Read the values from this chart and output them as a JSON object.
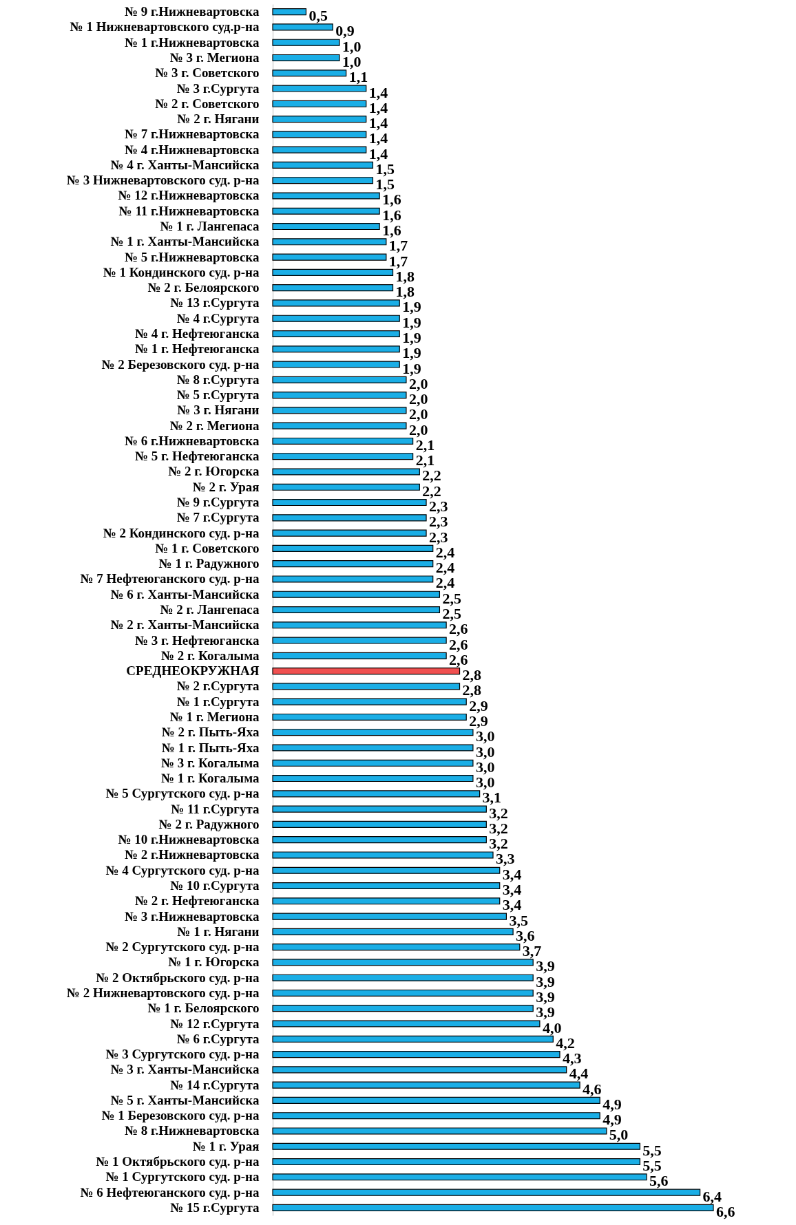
{
  "chart_data": {
    "type": "bar",
    "orientation": "horizontal",
    "categories": [
      "№ 9 г.Нижневартовска",
      "№ 1 Нижневартовского суд.р-на",
      "№ 1 г.Нижневартовска",
      "№ 3 г. Мегиона",
      "№ 3 г. Советского",
      "№ 3 г.Сургута",
      "№ 2 г. Советского",
      "№ 2 г. Нягани",
      "№ 7 г.Нижневартовска",
      "№ 4 г.Нижневартовска",
      "№ 4  г. Ханты-Мансийска",
      "№ 3 Нижневартовского суд. р-на",
      "№ 12 г.Нижневартовска",
      "№ 11 г.Нижневартовска",
      "№ 1 г. Лангепаса",
      "№ 1 г. Ханты-Мансийска",
      "№ 5 г.Нижневартовска",
      "№ 1 Кондинского суд. р-на",
      "№ 2 г. Белоярского",
      "№ 13 г.Сургута",
      "№ 4 г.Сургута",
      "№ 4 г. Нефтеюганска",
      "№ 1 г. Нефтеюганска",
      "№ 2 Березовского суд. р-на",
      "№ 8 г.Сургута",
      "№ 5 г.Сургута",
      "№ 3 г. Нягани",
      "№ 2 г. Мегиона",
      "№ 6 г.Нижневартовска",
      "№ 5 г. Нефтеюганска",
      "№ 2 г. Югорска",
      "№ 2 г. Урая",
      "№ 9 г.Сургута",
      "№ 7 г.Сургута",
      "№ 2 Кондинского суд. р-на",
      "№ 1 г. Советского",
      "№ 1 г. Радужного",
      "№ 7 Нефтеюганского суд. р-на",
      "№ 6  г. Ханты-Мансийска",
      "№ 2 г. Лангепаса",
      "№ 2  г. Ханты-Мансийска",
      "№ 3 г. Нефтеюганска",
      "№ 2 г. Когалыма",
      "СРЕДНЕОКРУЖНАЯ",
      "№ 2 г.Сургута",
      "№ 1 г.Сургута",
      "№ 1 г. Мегиона",
      "№ 2 г. Пыть-Яха",
      "№ 1 г. Пыть-Яха",
      "№ 3 г. Когалыма",
      "№ 1 г. Когалыма",
      "№ 5 Сургутского суд. р-на",
      "№ 11 г.Сургута",
      "№ 2 г. Радужного",
      "№ 10 г.Нижневартовска",
      "№ 2 г.Нижневартовска",
      "№ 4 Сургутского суд. р-на",
      "№ 10 г.Сургута",
      "№ 2 г. Нефтеюганска",
      "№ 3 г.Нижневартовска",
      "№ 1 г. Нягани",
      "№ 2 Сургутского суд. р-на",
      "№ 1 г. Югорска",
      "№ 2 Октябрьского суд. р-на",
      "№ 2 Нижневартовского суд. р-на",
      "№ 1 г. Белоярского",
      "№ 12 г.Сургута",
      "№ 6 г.Сургута",
      "№ 3 Сургутского суд. р-на",
      "№ 3  г. Ханты-Мансийска",
      "№ 14 г.Сургута",
      "№ 5  г. Ханты-Мансийска",
      "№ 1 Березовского суд. р-на",
      "№ 8 г.Нижневартовска",
      "№ 1 г. Урая",
      "№ 1 Октябрьского суд. р-на",
      "№ 1 Сургутского суд. р-на",
      "№ 6 Нефтеюганского суд. р-на",
      "№ 15 г.Сургута"
    ],
    "values": [
      0.5,
      0.9,
      1.0,
      1.0,
      1.1,
      1.4,
      1.4,
      1.4,
      1.4,
      1.4,
      1.5,
      1.5,
      1.6,
      1.6,
      1.6,
      1.7,
      1.7,
      1.8,
      1.8,
      1.9,
      1.9,
      1.9,
      1.9,
      1.9,
      2.0,
      2.0,
      2.0,
      2.0,
      2.1,
      2.1,
      2.2,
      2.2,
      2.3,
      2.3,
      2.3,
      2.4,
      2.4,
      2.4,
      2.5,
      2.5,
      2.6,
      2.6,
      2.6,
      2.8,
      2.8,
      2.9,
      2.9,
      3.0,
      3.0,
      3.0,
      3.0,
      3.1,
      3.2,
      3.2,
      3.2,
      3.3,
      3.4,
      3.4,
      3.4,
      3.5,
      3.6,
      3.7,
      3.9,
      3.9,
      3.9,
      3.9,
      4.0,
      4.2,
      4.3,
      4.4,
      4.6,
      4.9,
      4.9,
      5.0,
      5.5,
      5.5,
      5.6,
      6.4,
      6.6
    ],
    "value_labels": [
      "0,5",
      "0,9",
      "1,0",
      "1,0",
      "1,1",
      "1,4",
      "1,4",
      "1,4",
      "1,4",
      "1,4",
      "1,5",
      "1,5",
      "1,6",
      "1,6",
      "1,6",
      "1,7",
      "1,7",
      "1,8",
      "1,8",
      "1,9",
      "1,9",
      "1,9",
      "1,9",
      "1,9",
      "2,0",
      "2,0",
      "2,0",
      "2,0",
      "2,1",
      "2,1",
      "2,2",
      "2,2",
      "2,3",
      "2,3",
      "2,3",
      "2,4",
      "2,4",
      "2,4",
      "2,5",
      "2,5",
      "2,6",
      "2,6",
      "2,6",
      "2,8",
      "2,8",
      "2,9",
      "2,9",
      "3,0",
      "3,0",
      "3,0",
      "3,0",
      "3,1",
      "3,2",
      "3,2",
      "3,2",
      "3,3",
      "3,4",
      "3,4",
      "3,4",
      "3,5",
      "3,6",
      "3,7",
      "3,9",
      "3,9",
      "3,9",
      "3,9",
      "4,0",
      "4,2",
      "4,3",
      "4,4",
      "4,6",
      "4,9",
      "4,9",
      "5,0",
      "5,5",
      "5,5",
      "5,6",
      "6,4",
      "6,6"
    ],
    "colors": [
      "#1aaee6",
      "#1aaee6",
      "#1aaee6",
      "#1aaee6",
      "#1aaee6",
      "#1aaee6",
      "#1aaee6",
      "#1aaee6",
      "#1aaee6",
      "#1aaee6",
      "#1aaee6",
      "#1aaee6",
      "#1aaee6",
      "#1aaee6",
      "#1aaee6",
      "#1aaee6",
      "#1aaee6",
      "#1aaee6",
      "#1aaee6",
      "#1aaee6",
      "#1aaee6",
      "#1aaee6",
      "#1aaee6",
      "#1aaee6",
      "#1aaee6",
      "#1aaee6",
      "#1aaee6",
      "#1aaee6",
      "#1aaee6",
      "#1aaee6",
      "#1aaee6",
      "#1aaee6",
      "#1aaee6",
      "#1aaee6",
      "#1aaee6",
      "#1aaee6",
      "#1aaee6",
      "#1aaee6",
      "#1aaee6",
      "#1aaee6",
      "#1aaee6",
      "#1aaee6",
      "#1aaee6",
      "#f05050",
      "#1aaee6",
      "#1aaee6",
      "#1aaee6",
      "#1aaee6",
      "#1aaee6",
      "#1aaee6",
      "#1aaee6",
      "#1aaee6",
      "#1aaee6",
      "#1aaee6",
      "#1aaee6",
      "#1aaee6",
      "#1aaee6",
      "#1aaee6",
      "#1aaee6",
      "#1aaee6",
      "#1aaee6",
      "#1aaee6",
      "#1aaee6",
      "#1aaee6",
      "#1aaee6",
      "#1aaee6",
      "#1aaee6",
      "#1aaee6",
      "#1aaee6",
      "#1aaee6",
      "#1aaee6",
      "#1aaee6",
      "#1aaee6",
      "#1aaee6",
      "#1aaee6",
      "#1aaee6",
      "#1aaee6",
      "#1aaee6",
      "#1aaee6"
    ]
  }
}
